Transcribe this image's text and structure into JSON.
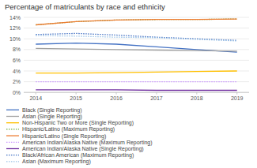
{
  "chart_data": {
    "type": "line",
    "title": "Percentage of matriculants by race and ethnicity",
    "x": [
      2014,
      2015,
      2016,
      2017,
      2018,
      2019
    ],
    "xlim": [
      2013.7,
      2019.3
    ],
    "xticks": [
      2014,
      2015,
      2016,
      2017,
      2018,
      2019
    ],
    "ylim": [
      0,
      14
    ],
    "yticks": [
      {
        "value": 0,
        "label": "0%"
      },
      {
        "value": 2,
        "label": "2%"
      },
      {
        "value": 4,
        "label": "4%"
      },
      {
        "value": 6,
        "label": "6%"
      },
      {
        "value": 8,
        "label": "8%"
      },
      {
        "value": 10,
        "label": "10%"
      },
      {
        "value": 12,
        "label": "12%"
      },
      {
        "value": 14,
        "label": "14%"
      }
    ],
    "grid": true,
    "legend": "bottom",
    "series": [
      {
        "name": "Black (Single Reporting)",
        "color": "#4472C4",
        "line_style": "solid",
        "values": [
          9.0,
          9.2,
          9.0,
          8.5,
          8.0,
          7.5
        ]
      },
      {
        "name": "Asian (Single Reporting)",
        "color": "#A0A0A0",
        "line_style": "solid",
        "values": [
          8.2,
          8.1,
          8.0,
          7.9,
          7.8,
          7.7
        ]
      },
      {
        "name": "Non-Hispanic Two or More (Single Reporting)",
        "color": "#FFC000",
        "line_style": "solid",
        "values": [
          3.6,
          3.6,
          3.7,
          3.8,
          3.9,
          4.0
        ]
      },
      {
        "name": "Hispanic/Latino (Maximum Reporting)",
        "color": "#70AD47",
        "line_style": "dotted",
        "values": [
          12.6,
          13.2,
          13.5,
          13.6,
          13.6,
          13.7
        ]
      },
      {
        "name": "Hispanic/Latino (Single Reporting)",
        "color": "#ED7D31",
        "line_style": "solid",
        "values": [
          12.6,
          13.2,
          13.5,
          13.6,
          13.6,
          13.7
        ]
      },
      {
        "name": "American Indian/Alaska Native (Maximum Reporting)",
        "color": "#CC99FF",
        "line_style": "dotted",
        "values": [
          2.0,
          2.0,
          2.0,
          2.0,
          2.0,
          2.0
        ]
      },
      {
        "name": "American Indian/Alaska Native (Single Reporting)",
        "color": "#7030A0",
        "line_style": "solid",
        "values": [
          0.5,
          0.5,
          0.5,
          0.4,
          0.4,
          0.4
        ]
      },
      {
        "name": "Black/African American (Maximum Reporting)",
        "color": "#4472C4",
        "line_style": "dotted",
        "values": [
          10.8,
          11.0,
          10.7,
          10.3,
          10.0,
          9.7
        ]
      },
      {
        "name": "Asian (Maximum Reporting)",
        "color": "#9DC3E6",
        "line_style": "dotted",
        "values": [
          10.6,
          10.5,
          10.3,
          10.2,
          9.9,
          9.6
        ]
      }
    ]
  }
}
